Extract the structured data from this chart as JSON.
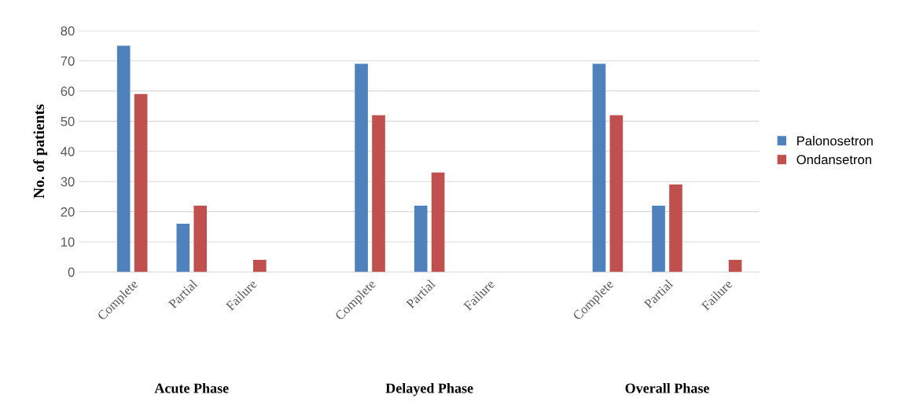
{
  "chart_data": {
    "type": "bar",
    "ylabel": "No. of patients",
    "categories": [
      "Complete",
      "Partial",
      "Failure",
      null,
      "Complete",
      "Partial",
      "Failure",
      null,
      "Complete",
      "Partial",
      "Failure"
    ],
    "series": [
      {
        "name": "Palonosetron",
        "color": "#4f81bd",
        "values": [
          75,
          16,
          0,
          null,
          69,
          22,
          0,
          null,
          69,
          22,
          0
        ]
      },
      {
        "name": "Ondansetron",
        "color": "#c0504d",
        "values": [
          59,
          22,
          4,
          null,
          52,
          33,
          0,
          null,
          52,
          29,
          4
        ]
      }
    ],
    "annotations": [
      "Acute Phase",
      "Delayed Phase",
      "Overall Phase"
    ],
    "ylim": [
      0,
      80
    ],
    "yticks": [
      0,
      10,
      20,
      30,
      40,
      50,
      60,
      70,
      80
    ],
    "grid": "y",
    "legend": "right"
  }
}
